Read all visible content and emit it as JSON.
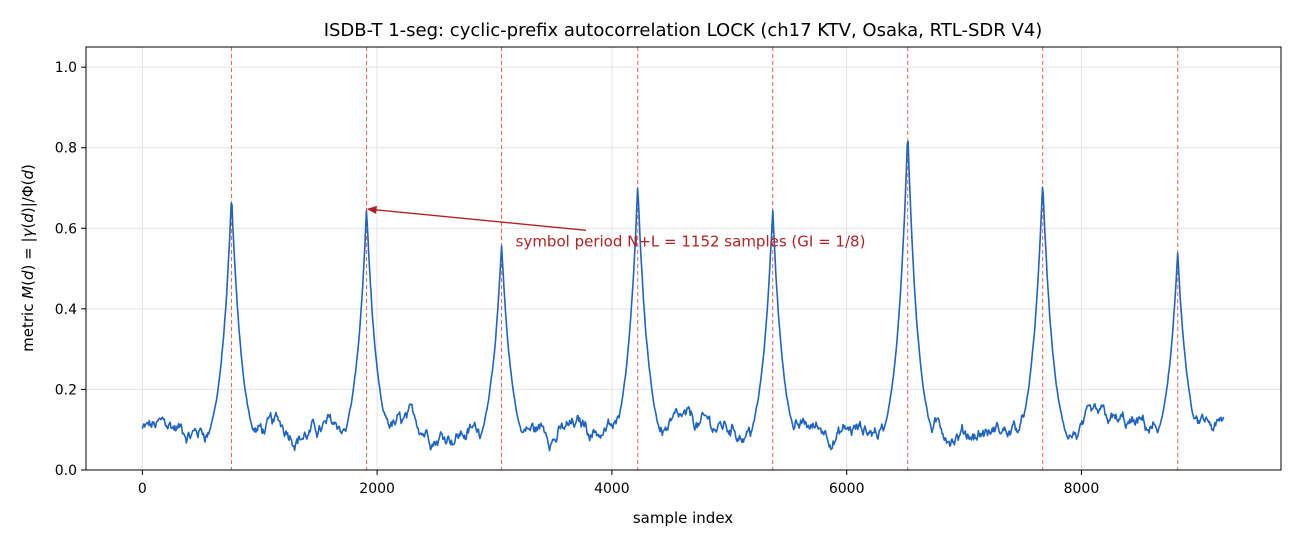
{
  "chart_data": {
    "type": "line",
    "title": "ISDB-T 1-seg: cyclic-prefix autocorrelation LOCK  (ch17 KTV, Osaka, RTL-SDR V4)",
    "xlabel": "sample index",
    "ylabel_parts": [
      "metric  ",
      "M",
      "(",
      "d",
      ") = |",
      "γ",
      "(",
      "d",
      ")|/Φ(",
      "d",
      ")"
    ],
    "xlim": [
      -480,
      9700
    ],
    "ylim": [
      0,
      1.05
    ],
    "xticks": [
      0,
      2000,
      4000,
      6000,
      8000
    ],
    "xtick_labels": [
      "0",
      "2000",
      "4000",
      "6000",
      "8000"
    ],
    "yticks": [
      0.0,
      0.2,
      0.4,
      0.6,
      0.8,
      1.0
    ],
    "ytick_labels": [
      "0.0",
      "0.2",
      "0.4",
      "0.6",
      "0.8",
      "1.0"
    ],
    "grid": true,
    "line_color": "#1f64c0",
    "marker_color": "#e8604f",
    "annotation_color": "#b22222",
    "series": {
      "x_start": 0,
      "x_end": 9215,
      "peaks": [
        {
          "x": 760,
          "y": 0.68
        },
        {
          "x": 1910,
          "y": 0.65
        },
        {
          "x": 3060,
          "y": 0.56
        },
        {
          "x": 4220,
          "y": 0.71
        },
        {
          "x": 5370,
          "y": 0.65
        },
        {
          "x": 6520,
          "y": 0.84
        },
        {
          "x": 7670,
          "y": 0.72
        },
        {
          "x": 8820,
          "y": 0.54
        }
      ],
      "baseline_mean": 0.1,
      "baseline_spread": 0.06
    },
    "vlines": [
      760,
      1910,
      3060,
      4220,
      5370,
      6520,
      7670,
      8820
    ],
    "annotation": {
      "text": "symbol period N+L = 1152 samples  (GI = 1/8)",
      "text_x": 3180,
      "text_y": 0.555,
      "arrow_from_x": 3780,
      "arrow_from_y": 0.595,
      "arrow_to_x": 1910,
      "arrow_to_y": 0.648
    }
  }
}
